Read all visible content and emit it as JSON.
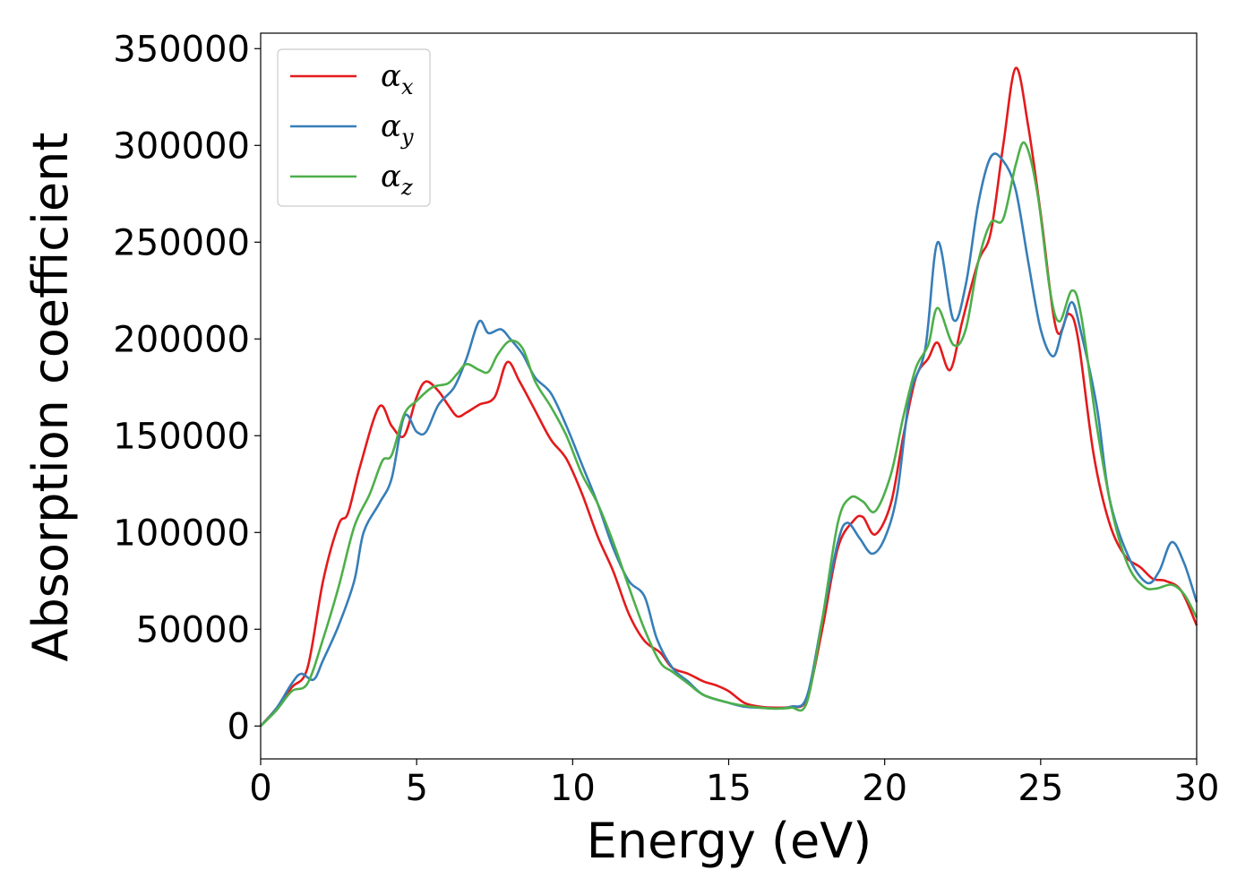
{
  "chart_data": {
    "type": "line",
    "title": "",
    "xlabel": "Energy (eV)",
    "ylabel": "Absorption coefficient",
    "xlim": [
      0,
      30
    ],
    "ylim": [
      -17000,
      358000
    ],
    "x_ticks": [
      "0",
      "5",
      "10",
      "15",
      "20",
      "25",
      "30"
    ],
    "y_ticks": [
      "0",
      "50000",
      "100000",
      "150000",
      "200000",
      "250000",
      "300000",
      "350000"
    ],
    "grid": false,
    "legend_position": "top-left",
    "series": [
      {
        "name": "α",
        "sub": "x",
        "color": "#e41a1c",
        "points": [
          [
            0,
            0
          ],
          [
            0.5,
            9000
          ],
          [
            1,
            20000
          ],
          [
            1.5,
            30000
          ],
          [
            2,
            75000
          ],
          [
            2.5,
            104000
          ],
          [
            2.8,
            110000
          ],
          [
            3.2,
            135000
          ],
          [
            3.8,
            165000
          ],
          [
            4.2,
            155000
          ],
          [
            4.6,
            150000
          ],
          [
            5,
            170000
          ],
          [
            5.3,
            178000
          ],
          [
            5.7,
            173000
          ],
          [
            6,
            166000
          ],
          [
            6.3,
            160000
          ],
          [
            6.6,
            162000
          ],
          [
            7,
            166000
          ],
          [
            7.5,
            170000
          ],
          [
            7.9,
            188000
          ],
          [
            8.3,
            178000
          ],
          [
            8.8,
            163000
          ],
          [
            9.3,
            148000
          ],
          [
            9.8,
            138000
          ],
          [
            10.3,
            120000
          ],
          [
            10.8,
            98000
          ],
          [
            11.3,
            80000
          ],
          [
            11.8,
            58000
          ],
          [
            12.3,
            44000
          ],
          [
            12.8,
            38000
          ],
          [
            13.2,
            30000
          ],
          [
            13.7,
            27000
          ],
          [
            14.2,
            23000
          ],
          [
            14.6,
            21000
          ],
          [
            15,
            18000
          ],
          [
            15.5,
            12000
          ],
          [
            16,
            10000
          ],
          [
            16.5,
            9500
          ],
          [
            17,
            10000
          ],
          [
            17.5,
            14000
          ],
          [
            18,
            50000
          ],
          [
            18.5,
            92000
          ],
          [
            19,
            106000
          ],
          [
            19.3,
            108000
          ],
          [
            19.7,
            99000
          ],
          [
            20.2,
            115000
          ],
          [
            20.6,
            150000
          ],
          [
            21,
            180000
          ],
          [
            21.4,
            190000
          ],
          [
            21.7,
            198000
          ],
          [
            22.1,
            184000
          ],
          [
            22.5,
            210000
          ],
          [
            23,
            240000
          ],
          [
            23.4,
            255000
          ],
          [
            23.8,
            300000
          ],
          [
            24.2,
            340000
          ],
          [
            24.6,
            310000
          ],
          [
            25,
            265000
          ],
          [
            25.5,
            205000
          ],
          [
            25.9,
            213000
          ],
          [
            26.2,
            200000
          ],
          [
            26.7,
            140000
          ],
          [
            27.2,
            105000
          ],
          [
            27.7,
            88000
          ],
          [
            28.2,
            82000
          ],
          [
            28.6,
            76000
          ],
          [
            29,
            75000
          ],
          [
            29.5,
            70000
          ],
          [
            30,
            52000
          ]
        ]
      },
      {
        "name": "α",
        "sub": "y",
        "color": "#377eb8",
        "points": [
          [
            0,
            0
          ],
          [
            0.5,
            9000
          ],
          [
            1,
            22000
          ],
          [
            1.3,
            27000
          ],
          [
            1.7,
            24000
          ],
          [
            2,
            34000
          ],
          [
            2.5,
            52000
          ],
          [
            3,
            75000
          ],
          [
            3.3,
            100000
          ],
          [
            3.8,
            115000
          ],
          [
            4.2,
            128000
          ],
          [
            4.6,
            160000
          ],
          [
            5,
            152000
          ],
          [
            5.3,
            152000
          ],
          [
            5.7,
            166000
          ],
          [
            6.2,
            175000
          ],
          [
            6.6,
            190000
          ],
          [
            7,
            209000
          ],
          [
            7.3,
            203000
          ],
          [
            7.7,
            205000
          ],
          [
            8,
            200000
          ],
          [
            8.4,
            192000
          ],
          [
            8.8,
            180000
          ],
          [
            9.3,
            172000
          ],
          [
            9.8,
            155000
          ],
          [
            10.3,
            135000
          ],
          [
            10.8,
            115000
          ],
          [
            11.3,
            92000
          ],
          [
            11.8,
            75000
          ],
          [
            12.3,
            67000
          ],
          [
            12.7,
            45000
          ],
          [
            13.2,
            30000
          ],
          [
            13.7,
            23000
          ],
          [
            14.2,
            16000
          ],
          [
            15,
            12000
          ],
          [
            15.5,
            10000
          ],
          [
            16,
            9500
          ],
          [
            16.5,
            9000
          ],
          [
            17,
            10000
          ],
          [
            17.5,
            15000
          ],
          [
            18,
            55000
          ],
          [
            18.5,
            95000
          ],
          [
            18.8,
            105000
          ],
          [
            19.2,
            97000
          ],
          [
            19.6,
            89000
          ],
          [
            20,
            97000
          ],
          [
            20.4,
            120000
          ],
          [
            20.8,
            170000
          ],
          [
            21.3,
            195000
          ],
          [
            21.7,
            250000
          ],
          [
            22.2,
            210000
          ],
          [
            22.6,
            228000
          ],
          [
            23,
            270000
          ],
          [
            23.4,
            294000
          ],
          [
            23.8,
            292000
          ],
          [
            24.2,
            277000
          ],
          [
            24.6,
            240000
          ],
          [
            25,
            205000
          ],
          [
            25.4,
            191000
          ],
          [
            25.7,
            205000
          ],
          [
            26,
            219000
          ],
          [
            26.3,
            203000
          ],
          [
            26.8,
            165000
          ],
          [
            27.2,
            118000
          ],
          [
            27.8,
            88000
          ],
          [
            28.4,
            74000
          ],
          [
            28.8,
            80000
          ],
          [
            29.2,
            95000
          ],
          [
            29.6,
            84000
          ],
          [
            30,
            64000
          ]
        ]
      },
      {
        "name": "α",
        "sub": "z",
        "color": "#4daf4a",
        "points": [
          [
            0,
            0
          ],
          [
            0.5,
            8000
          ],
          [
            1,
            18000
          ],
          [
            1.5,
            22000
          ],
          [
            2,
            45000
          ],
          [
            2.5,
            72000
          ],
          [
            3,
            103000
          ],
          [
            3.5,
            120000
          ],
          [
            3.9,
            137000
          ],
          [
            4.2,
            140000
          ],
          [
            4.6,
            161000
          ],
          [
            5,
            168000
          ],
          [
            5.5,
            175000
          ],
          [
            6,
            177000
          ],
          [
            6.3,
            182000
          ],
          [
            6.6,
            187000
          ],
          [
            7,
            184000
          ],
          [
            7.3,
            183000
          ],
          [
            7.6,
            192000
          ],
          [
            8,
            199000
          ],
          [
            8.4,
            195000
          ],
          [
            8.8,
            178000
          ],
          [
            9.3,
            165000
          ],
          [
            9.8,
            150000
          ],
          [
            10.3,
            130000
          ],
          [
            10.8,
            115000
          ],
          [
            11.3,
            95000
          ],
          [
            11.8,
            72000
          ],
          [
            12.3,
            50000
          ],
          [
            12.8,
            33000
          ],
          [
            13.2,
            28000
          ],
          [
            13.7,
            22000
          ],
          [
            14.2,
            16000
          ],
          [
            15,
            12000
          ],
          [
            15.5,
            10500
          ],
          [
            16,
            9500
          ],
          [
            16.5,
            9000
          ],
          [
            17,
            9500
          ],
          [
            17.5,
            12000
          ],
          [
            18,
            55000
          ],
          [
            18.5,
            105000
          ],
          [
            18.9,
            118000
          ],
          [
            19.3,
            116000
          ],
          [
            19.7,
            111000
          ],
          [
            20.2,
            130000
          ],
          [
            20.6,
            160000
          ],
          [
            21,
            185000
          ],
          [
            21.4,
            197000
          ],
          [
            21.7,
            216000
          ],
          [
            22.2,
            197000
          ],
          [
            22.6,
            205000
          ],
          [
            23,
            240000
          ],
          [
            23.4,
            260000
          ],
          [
            23.8,
            262000
          ],
          [
            24.2,
            290000
          ],
          [
            24.5,
            301000
          ],
          [
            24.9,
            275000
          ],
          [
            25.3,
            225000
          ],
          [
            25.6,
            209000
          ],
          [
            26,
            225000
          ],
          [
            26.3,
            212000
          ],
          [
            26.8,
            155000
          ],
          [
            27.3,
            110000
          ],
          [
            27.8,
            83000
          ],
          [
            28.3,
            72000
          ],
          [
            28.7,
            71000
          ],
          [
            29.2,
            73000
          ],
          [
            29.6,
            68000
          ],
          [
            30,
            56000
          ]
        ]
      }
    ]
  }
}
